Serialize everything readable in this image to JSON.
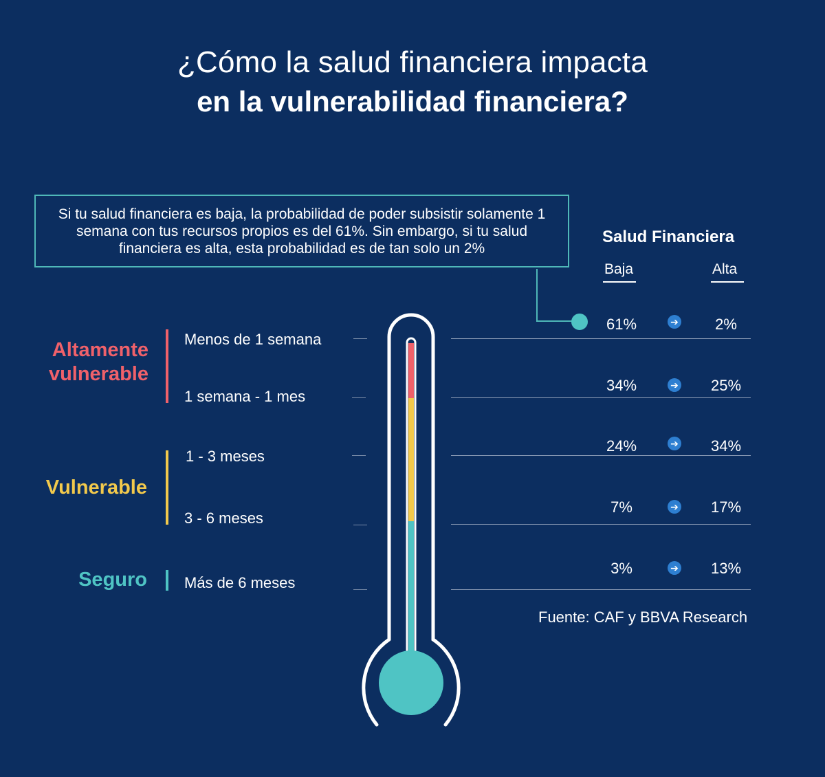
{
  "title": {
    "line1": "¿Cómo la salud financiera impacta",
    "line2": "en la vulnerabilidad financiera?"
  },
  "callout": "Si tu salud financiera es baja, la probabilidad de poder subsistir solamente 1 semana con tus recursos propios es del 61%. Sin embargo, si tu salud financiera es alta, esta probabilidad es de tan solo un 2%",
  "categories": [
    {
      "label_line1": "Altamente",
      "label_line2": "vulnerable",
      "color": "#f0616a"
    },
    {
      "label_line1": "Vulnerable",
      "label_line2": "",
      "color": "#f2c94c"
    },
    {
      "label_line1": "Seguro",
      "label_line2": "",
      "color": "#4fc4c4"
    }
  ],
  "ranges": [
    "Menos de 1 semana",
    "1 semana - 1 mes",
    "1 - 3 meses",
    "3 - 6 meses",
    "Más de 6 meses"
  ],
  "table": {
    "header": "Salud Financiera",
    "col_low": "Baja",
    "col_high": "Alta",
    "arrow_icon": "arrow-right-circle-icon"
  },
  "source": "Fuente: CAF y BBVA Research",
  "colors": {
    "background": "#0c2e60",
    "red": "#f0616a",
    "yellow": "#f2c94c",
    "teal": "#4fc4c4",
    "arrow": "#2e7fd1"
  },
  "chart_data": {
    "type": "table",
    "title": "¿Cómo la salud financiera impacta en la vulnerabilidad financiera?",
    "categories": [
      "Menos de 1 semana",
      "1 semana - 1 mes",
      "1 - 3 meses",
      "3 - 6 meses",
      "Más de 6 meses"
    ],
    "series": [
      {
        "name": "Baja",
        "values": [
          "61%",
          "34%",
          "24%",
          "7%",
          "3%"
        ]
      },
      {
        "name": "Alta",
        "values": [
          "2%",
          "25%",
          "34%",
          "17%",
          "13%"
        ]
      }
    ]
  }
}
